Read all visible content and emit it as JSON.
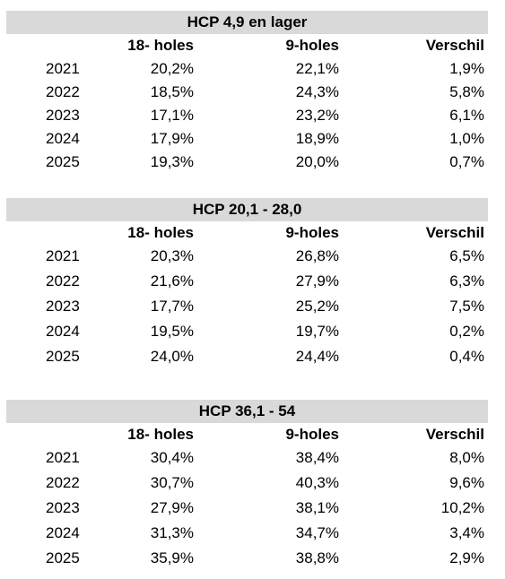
{
  "tables": [
    {
      "title": "HCP 4,9 en lager",
      "headers": [
        "18- holes",
        "9-holes",
        "Verschil"
      ],
      "rows": [
        [
          "2021",
          "20,2%",
          "22,1%",
          "1,9%"
        ],
        [
          "2022",
          "18,5%",
          "24,3%",
          "5,8%"
        ],
        [
          "2023",
          "17,1%",
          "23,2%",
          "6,1%"
        ],
        [
          "2024",
          "17,9%",
          "18,9%",
          "1,0%"
        ],
        [
          "2025",
          "19,3%",
          "20,0%",
          "0,7%"
        ]
      ]
    },
    {
      "title": "HCP 20,1 - 28,0",
      "headers": [
        "18- holes",
        "9-holes",
        "Verschil"
      ],
      "rows": [
        [
          "2021",
          "20,3%",
          "26,8%",
          "6,5%"
        ],
        [
          "2022",
          "21,6%",
          "27,9%",
          "6,3%"
        ],
        [
          "2023",
          "17,7%",
          "25,2%",
          "7,5%"
        ],
        [
          "2024",
          "19,5%",
          "19,7%",
          "0,2%"
        ],
        [
          "2025",
          "24,0%",
          "24,4%",
          "0,4%"
        ]
      ]
    },
    {
      "title": "HCP 36,1 - 54",
      "headers": [
        "18- holes",
        "9-holes",
        "Verschil"
      ],
      "rows": [
        [
          "2021",
          "30,4%",
          "38,4%",
          "8,0%"
        ],
        [
          "2022",
          "30,7%",
          "40,3%",
          "9,6%"
        ],
        [
          "2023",
          "27,9%",
          "38,1%",
          "10,2%"
        ],
        [
          "2024",
          "31,3%",
          "34,7%",
          "3,4%"
        ],
        [
          "2025",
          "35,9%",
          "38,8%",
          "2,9%"
        ]
      ]
    }
  ]
}
